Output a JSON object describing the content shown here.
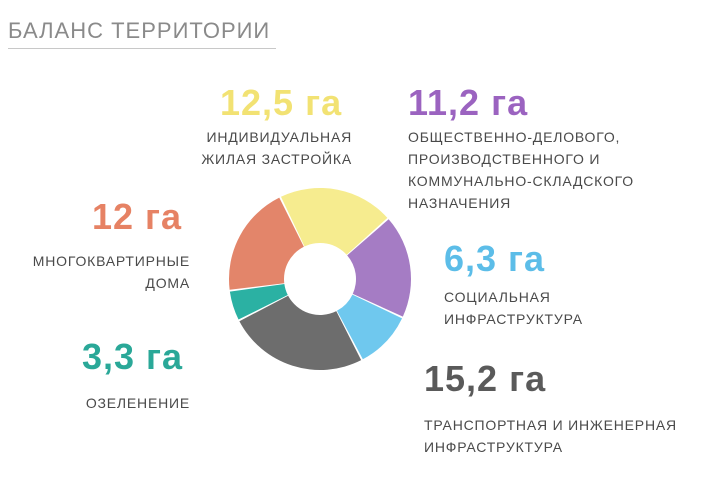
{
  "header": {
    "title": "БАЛАНС ТЕРРИТОРИИ"
  },
  "chart_data": {
    "type": "pie",
    "style": "donut",
    "unit": "га",
    "series": [
      {
        "name": "ИНДИВИДУАЛЬНАЯ ЖИЛАЯ ЗАСТРОЙКА",
        "value": 12.5,
        "value_label": "12,5 га",
        "label_lines": [
          "ИНДИВИДУАЛЬНАЯ",
          "ЖИЛАЯ ЗАСТРОЙКА"
        ],
        "color": "#f6ec8f"
      },
      {
        "name": "ОБЩЕСТВЕННО-ДЕЛОВОГО, ПРОИЗВОДСТВЕННОГО И КОММУНАЛЬНО-СКЛАДСКОГО НАЗНАЧЕНИЯ",
        "value": 11.2,
        "value_label": "11,2 га",
        "label_lines": [
          "ОБЩЕСТВЕННО-ДЕЛОВОГО,",
          "ПРОИЗВОДСТВЕННОГО И",
          "КОММУНАЛЬНО-СКЛАДСКОГО",
          "НАЗНАЧЕНИЯ"
        ],
        "color": "#a57cc4"
      },
      {
        "name": "СОЦИАЛЬНАЯ ИНФРАСТРУКТУРА",
        "value": 6.3,
        "value_label": "6,3 га",
        "label_lines": [
          "СОЦИАЛЬНАЯ",
          "ИНФРАСТРУКТУРА"
        ],
        "color": "#6fc8ee"
      },
      {
        "name": "ТРАНСПОРТНАЯ И ИНЖЕНЕРНАЯ ИНФРАСТРУКТУРА",
        "value": 15.2,
        "value_label": "15,2 га",
        "label_lines": [
          "ТРАНСПОРТНАЯ И ИНЖЕНЕРНАЯ",
          "ИНФРАСТРУКТУРА"
        ],
        "color": "#6d6d6d"
      },
      {
        "name": "ОЗЕЛЕНЕНИЕ",
        "value": 3.3,
        "value_label": "3,3 га",
        "label_lines": [
          "ОЗЕЛЕНЕНИЕ"
        ],
        "color": "#2bb1a3"
      },
      {
        "name": "МНОГОКВАРТИРНЫЕ ДОМА",
        "value": 12,
        "value_label": "12 га",
        "label_lines": [
          "МНОГОКВАРТИРНЫЕ",
          "ДОМА"
        ],
        "color": "#e3856a"
      }
    ]
  },
  "colors": {
    "title": "#8a8a8a",
    "label_text": "#4a4a4a",
    "value_individual": "#f2e273",
    "value_public": "#9b63c0",
    "value_social": "#5cbde8",
    "value_transport": "#5a5a5a",
    "value_green": "#2aa898",
    "value_apartments": "#e68264"
  }
}
